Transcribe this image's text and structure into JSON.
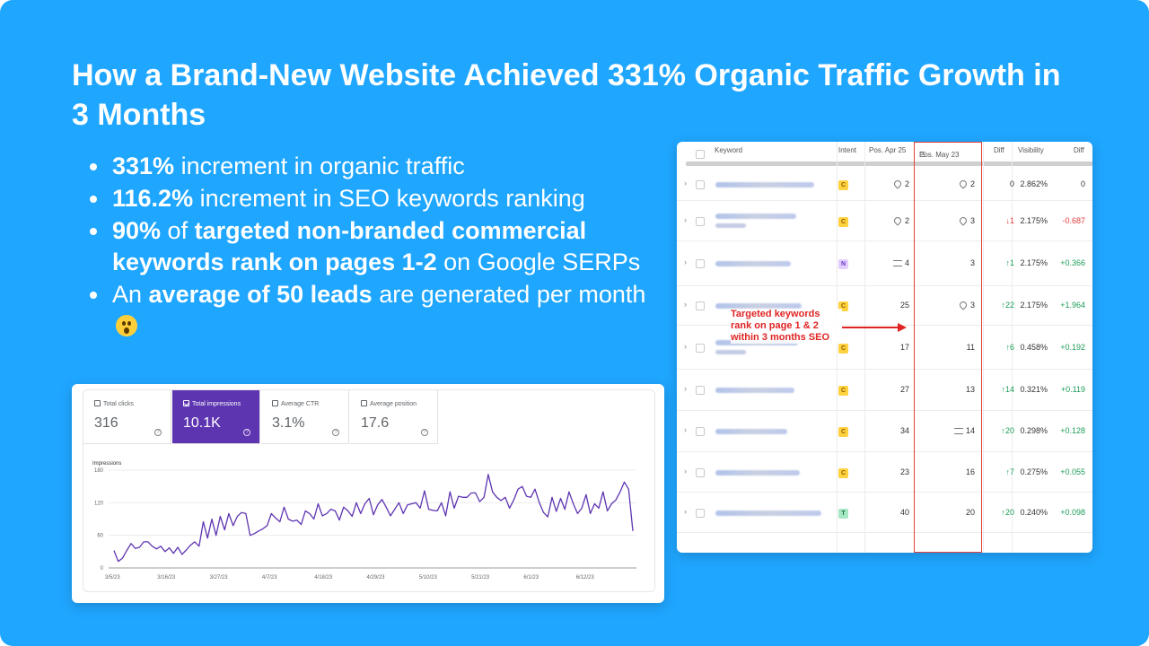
{
  "title": "How a Brand-New Website Achieved 331% Organic Traffic Growth in 3 Months",
  "bullets": {
    "b1_strong": "331%",
    "b1_rest": " increment in organic traffic",
    "b2_strong": "116.2%",
    "b2_rest": " increment in SEO keywords ranking",
    "b3_strong": "90%",
    "b3_mid": " of ",
    "b3_strong2": "targeted non-branded commercial keywords rank on pages 1-2",
    "b3_rest": " on Google SERPs",
    "b4_pre": "An ",
    "b4_strong": "average of 50 leads",
    "b4_rest": " are generated per month"
  },
  "search_console": {
    "metrics": [
      {
        "label": "Total clicks",
        "value": "316",
        "active": false
      },
      {
        "label": "Total impressions",
        "value": "10.1K",
        "active": true
      },
      {
        "label": "Average CTR",
        "value": "3.1%",
        "active": false
      },
      {
        "label": "Average position",
        "value": "17.6",
        "active": false
      }
    ],
    "accent_color": "#5e35b1",
    "help_glyph": "?"
  },
  "chart_data": {
    "type": "line",
    "ylabel": "Impressions",
    "ylim": [
      0,
      180
    ],
    "yticks": [
      0,
      60,
      120,
      180
    ],
    "xticks": [
      "3/5/23",
      "3/16/23",
      "3/27/23",
      "4/7/23",
      "4/18/23",
      "4/29/23",
      "5/10/23",
      "5/21/23",
      "6/1/23",
      "6/12/23"
    ],
    "x_start": "3/5/23",
    "series": [
      {
        "color": "#5e35b1",
        "values": [
          32,
          12,
          18,
          32,
          45,
          36,
          38,
          48,
          48,
          40,
          35,
          40,
          30,
          37,
          27,
          38,
          25,
          33,
          42,
          48,
          40,
          85,
          55,
          90,
          60,
          95,
          70,
          100,
          78,
          95,
          102,
          100,
          60,
          63,
          68,
          72,
          78,
          100,
          92,
          85,
          112,
          90,
          86,
          88,
          80,
          105,
          100,
          90,
          118,
          96,
          100,
          108,
          105,
          88,
          112,
          105,
          95,
          120,
          100,
          118,
          128,
          98,
          116,
          126,
          112,
          96,
          108,
          120,
          100,
          116,
          118,
          120,
          110,
          142,
          108,
          106,
          105,
          120,
          96,
          140,
          110,
          132,
          130,
          130,
          138,
          138,
          122,
          130,
          172,
          140,
          130,
          124,
          130,
          110,
          125,
          145,
          150,
          132,
          130,
          145,
          120,
          102,
          94,
          130,
          104,
          128,
          108,
          140,
          118,
          100,
          110,
          135,
          100,
          118,
          110,
          140,
          105,
          118,
          125,
          140,
          158,
          145,
          68
        ]
      }
    ]
  },
  "ranking_table": {
    "headers": {
      "keyword": "Keyword",
      "intent": "Intent",
      "pos1": "Pos. Apr 25",
      "pos2": "Pos. May 23",
      "diff": "Diff",
      "visibility": "Visibility",
      "diff2": "Diff"
    },
    "rows": [
      {
        "intent": "C",
        "pos1": "2",
        "pos1_icon": "pin",
        "pos2": "2",
        "pos2_icon": "pin",
        "diff": "0",
        "dir": "",
        "vis": "2.862%",
        "diff2": "0",
        "d2": ""
      },
      {
        "intent": "C",
        "pos1": "2",
        "pos1_icon": "pin",
        "pos2": "3",
        "pos2_icon": "pin",
        "diff": "1",
        "dir": "down",
        "vis": "2.175%",
        "diff2": "-0.687",
        "d2": "neg"
      },
      {
        "intent": "N",
        "pos1": "4",
        "pos1_icon": "stack",
        "pos2": "3",
        "pos2_icon": "",
        "diff": "1",
        "dir": "up",
        "vis": "2.175%",
        "diff2": "+0.366",
        "d2": "pos"
      },
      {
        "intent": "C",
        "pos1": "25",
        "pos1_icon": "",
        "pos2": "3",
        "pos2_icon": "pin",
        "diff": "22",
        "dir": "up",
        "vis": "2.175%",
        "diff2": "+1.964",
        "d2": "pos"
      },
      {
        "intent": "C",
        "pos1": "17",
        "pos1_icon": "",
        "pos2": "11",
        "pos2_icon": "",
        "diff": "6",
        "dir": "up",
        "vis": "0.458%",
        "diff2": "+0.192",
        "d2": "pos"
      },
      {
        "intent": "C",
        "pos1": "27",
        "pos1_icon": "",
        "pos2": "13",
        "pos2_icon": "",
        "diff": "14",
        "dir": "up",
        "vis": "0.321%",
        "diff2": "+0.119",
        "d2": "pos"
      },
      {
        "intent": "C",
        "pos1": "34",
        "pos1_icon": "",
        "pos2": "14",
        "pos2_icon": "stack",
        "diff": "20",
        "dir": "up",
        "vis": "0.298%",
        "diff2": "+0.128",
        "d2": "pos"
      },
      {
        "intent": "C",
        "pos1": "23",
        "pos1_icon": "",
        "pos2": "16",
        "pos2_icon": "",
        "diff": "7",
        "dir": "up",
        "vis": "0.275%",
        "diff2": "+0.055",
        "d2": "pos"
      },
      {
        "intent": "T",
        "pos1": "40",
        "pos1_icon": "",
        "pos2": "20",
        "pos2_icon": "",
        "diff": "20",
        "dir": "up",
        "vis": "0.240%",
        "diff2": "+0.098",
        "d2": "pos"
      }
    ],
    "annotation": "Targeted keywords rank on page 1 & 2 within 3 months SEO",
    "highlight_color": "#e5413a"
  }
}
